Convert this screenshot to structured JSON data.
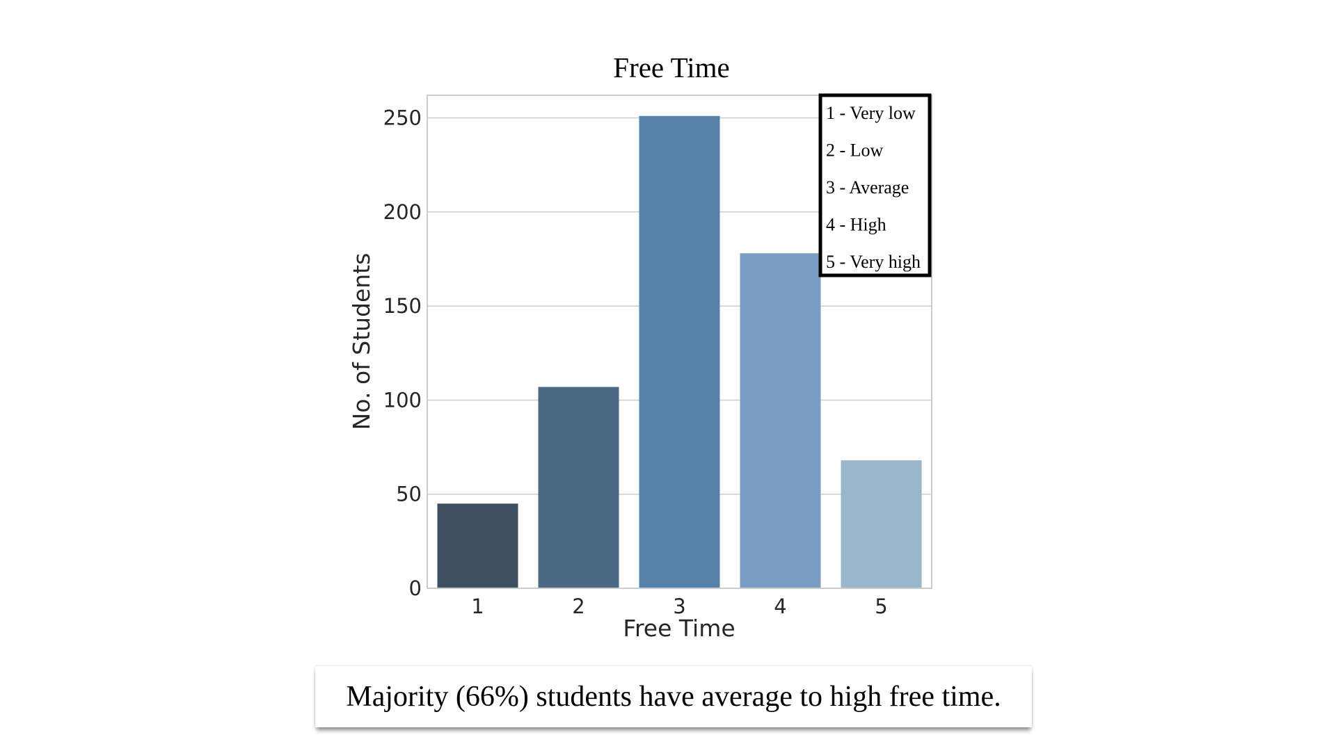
{
  "chart_data": {
    "type": "bar",
    "title": "Free Time",
    "xlabel": "Free Time",
    "ylabel": "No. of Students",
    "categories": [
      "1",
      "2",
      "3",
      "4",
      "5"
    ],
    "values": [
      45,
      107,
      251,
      178,
      68
    ],
    "colors": [
      "#3e4f5f",
      "#4b6884",
      "#5682aa",
      "#789dc1",
      "#9ab6cd"
    ],
    "ylim": [
      0,
      262
    ],
    "yticks": [
      0,
      50,
      100,
      150,
      200,
      250
    ],
    "grid": "horizontal",
    "legend_position": "top-right",
    "legend_items": [
      "1 - Very low",
      "2 - Low",
      "3 - Average",
      "4 - High",
      "5 - Very high"
    ]
  },
  "caption": {
    "text": "Majority (66%) students have average to high free time."
  }
}
